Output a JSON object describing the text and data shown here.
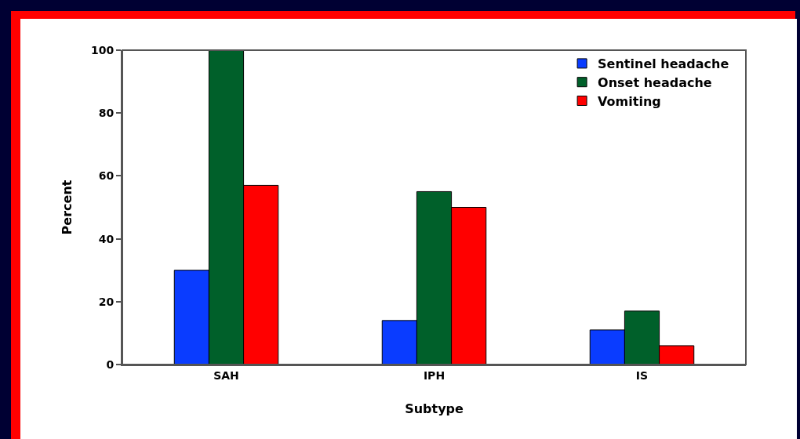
{
  "chart_data": {
    "type": "bar",
    "xlabel": "Subtype",
    "ylabel": "Percent",
    "categories": [
      "SAH",
      "IPH",
      "IS"
    ],
    "series": [
      {
        "name": "Sentinel headache",
        "color": "#0a3cff",
        "values": [
          30,
          14,
          11
        ]
      },
      {
        "name": "Onset headache",
        "color": "#00602a",
        "values": [
          100,
          55,
          17
        ]
      },
      {
        "name": "Vomiting",
        "color": "#ff0000",
        "values": [
          57,
          50,
          6
        ]
      }
    ],
    "ylim": [
      0,
      100
    ],
    "yticks": [
      0,
      20,
      40,
      60,
      80,
      100
    ],
    "grid": false,
    "legend": "top right"
  }
}
